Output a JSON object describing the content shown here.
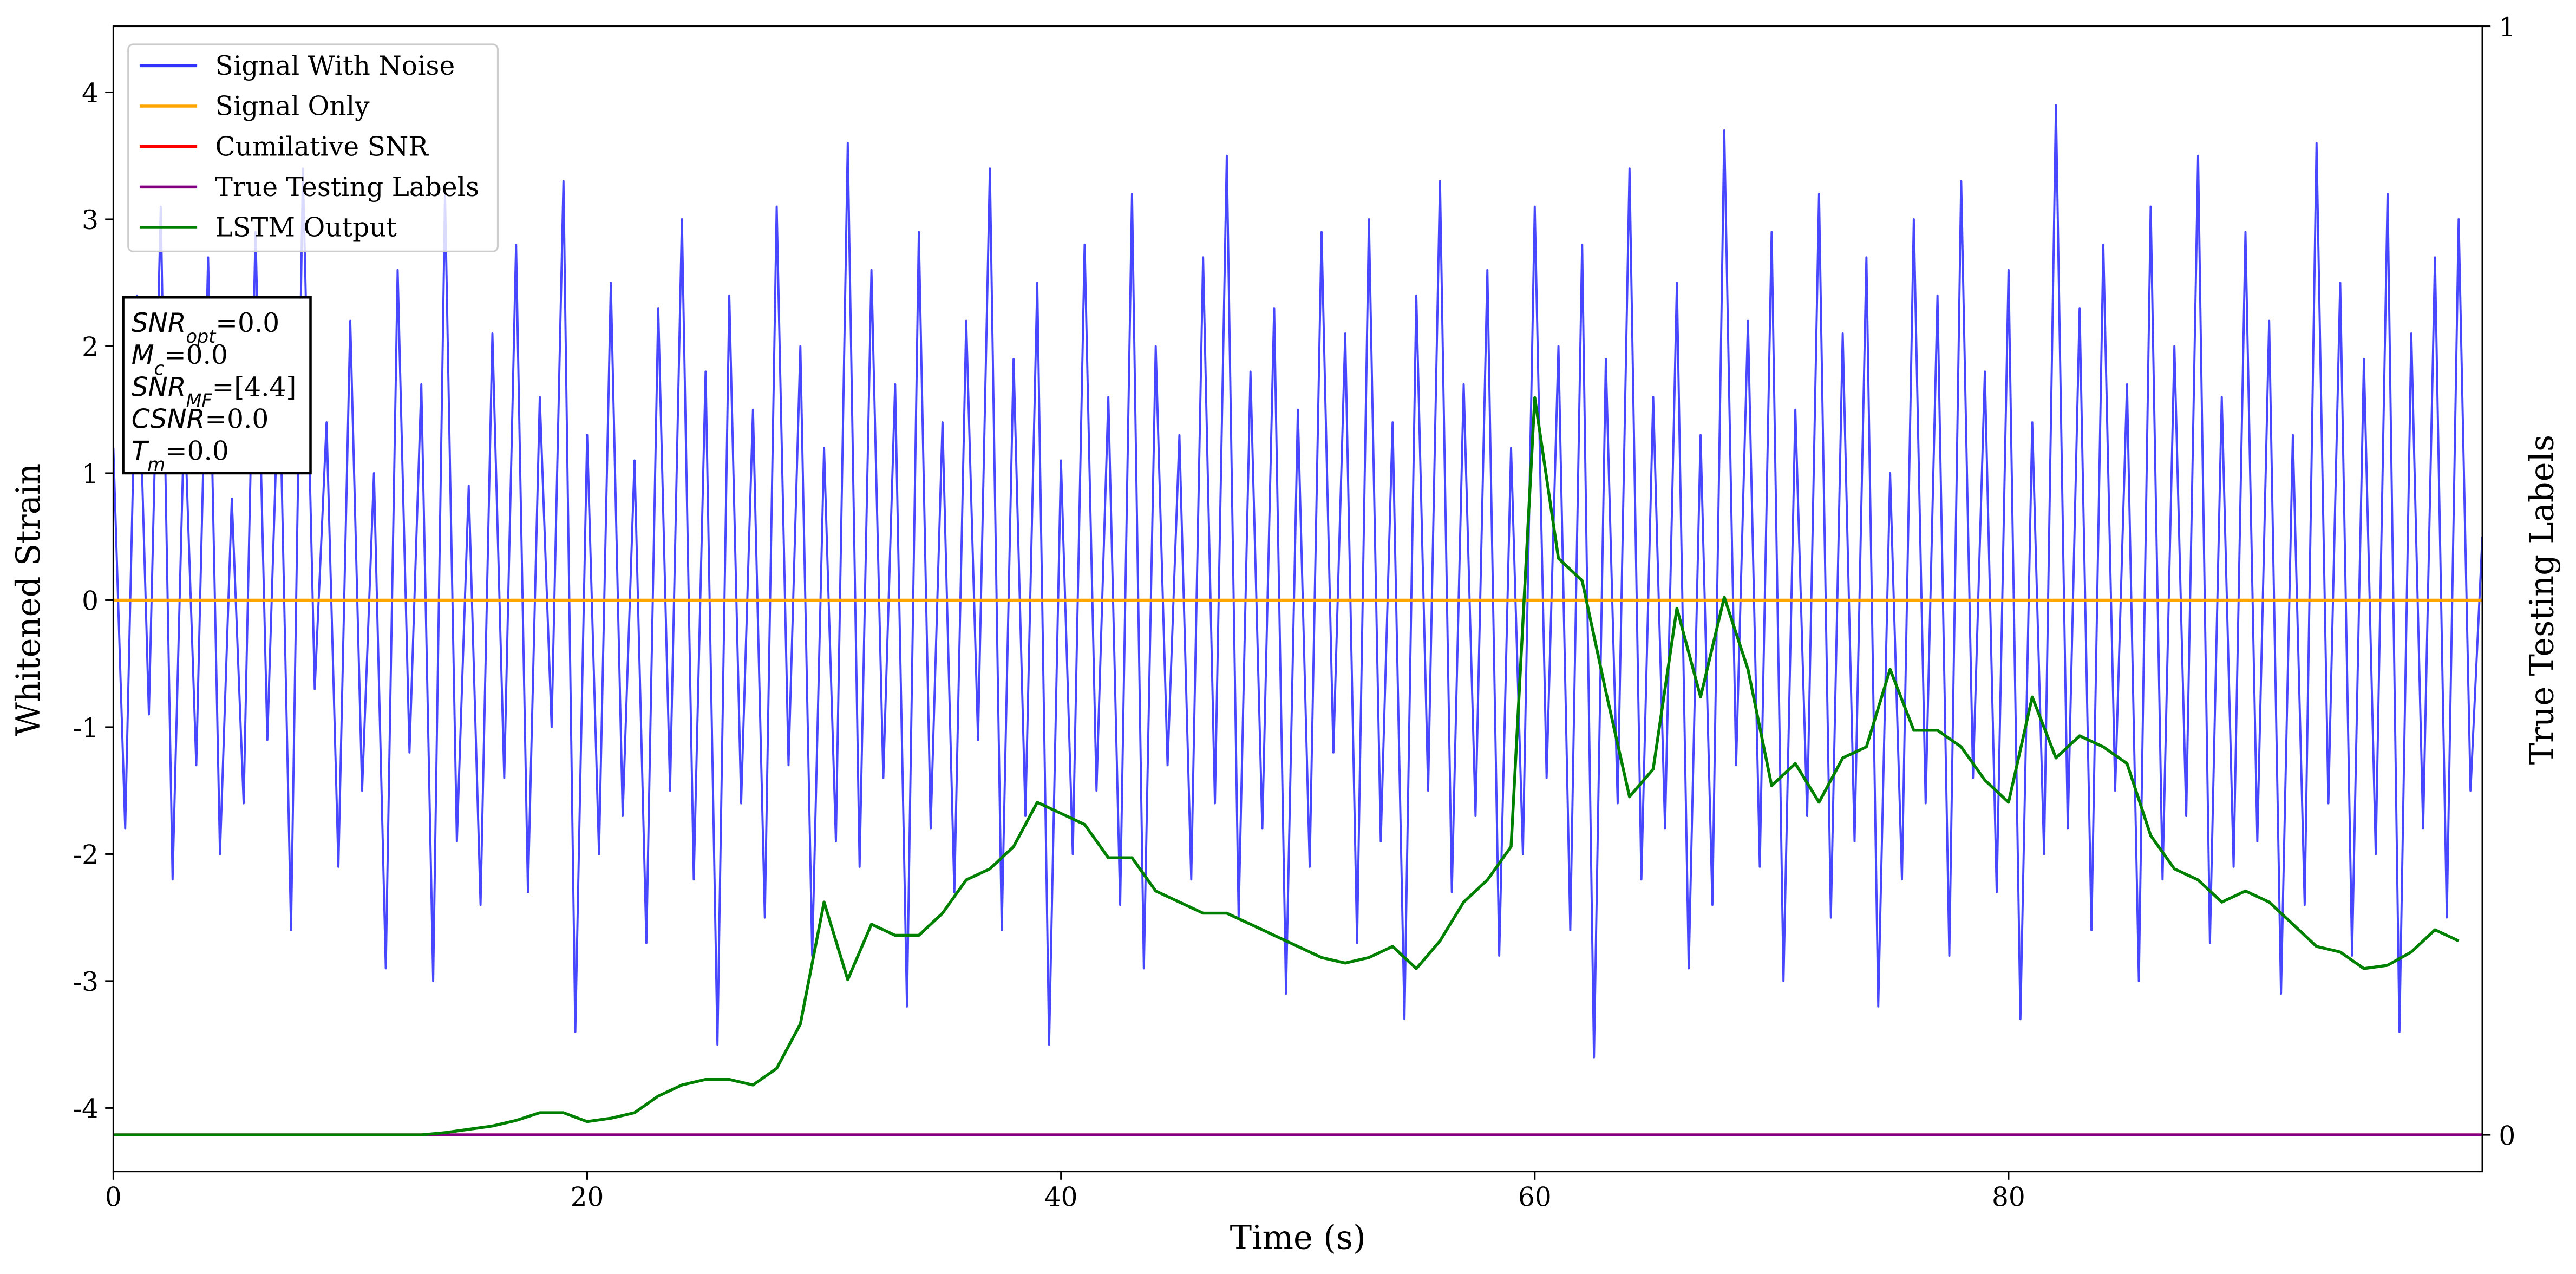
{
  "chart_data": {
    "type": "line",
    "x_label": "Time (s)",
    "y_label": "Whitened Strain",
    "y2_label": "True Testing Labels",
    "xlim": [
      0,
      100
    ],
    "xticks": [
      0,
      20,
      40,
      60,
      80
    ],
    "ylim": [
      -4.5,
      4.52
    ],
    "yticks": [
      -4,
      -3,
      -2,
      -1,
      0,
      1,
      2,
      3,
      4
    ],
    "y2lim": [
      -0.033,
      1.0
    ],
    "y2ticks": [
      0,
      1
    ],
    "legend": "upper left",
    "annotations": [
      {
        "symbol": "SNR",
        "sub": "opt",
        "text": "=0.0"
      },
      {
        "symbol": "M",
        "sub": "c",
        "text": "=0.0"
      },
      {
        "symbol": "SNR",
        "sub": "MF",
        "text": "=[4.4]"
      },
      {
        "symbol": "CSNR",
        "sub": null,
        "text": "=0.0"
      },
      {
        "symbol": "T",
        "sub": "m",
        "text": "=0.0"
      }
    ],
    "series": [
      {
        "name": "Signal With Noise",
        "color": "#3333ff",
        "axis": "y",
        "x": [
          0,
          0.5,
          1,
          1.5,
          2,
          2.5,
          3,
          3.5,
          4,
          4.5,
          5,
          5.5,
          6,
          6.5,
          7,
          7.5,
          8,
          8.5,
          9,
          9.5,
          10,
          10.5,
          11,
          11.5,
          12,
          12.5,
          13,
          13.5,
          14,
          14.5,
          15,
          15.5,
          16,
          16.5,
          17,
          17.5,
          18,
          18.5,
          19,
          19.5,
          20,
          20.5,
          21,
          21.5,
          22,
          22.5,
          23,
          23.5,
          24,
          24.5,
          25,
          25.5,
          26,
          26.5,
          27,
          27.5,
          28,
          28.5,
          29,
          29.5,
          30,
          30.5,
          31,
          31.5,
          32,
          32.5,
          33,
          33.5,
          34,
          34.5,
          35,
          35.5,
          36,
          36.5,
          37,
          37.5,
          38,
          38.5,
          39,
          39.5,
          40,
          40.5,
          41,
          41.5,
          42,
          42.5,
          43,
          43.5,
          44,
          44.5,
          45,
          45.5,
          46,
          46.5,
          47,
          47.5,
          48,
          48.5,
          49,
          49.5,
          50,
          50.5,
          51,
          51.5,
          52,
          52.5,
          53,
          53.5,
          54,
          54.5,
          55,
          55.5,
          56,
          56.5,
          57,
          57.5,
          58,
          58.5,
          59,
          59.5,
          60,
          60.5,
          61,
          61.5,
          62,
          62.5,
          63,
          63.5,
          64,
          64.5,
          65,
          65.5,
          66,
          66.5,
          67,
          67.5,
          68,
          68.5,
          69,
          69.5,
          70,
          70.5,
          71,
          71.5,
          72,
          72.5,
          73,
          73.5,
          74,
          74.5,
          75,
          75.5,
          76,
          76.5,
          77,
          77.5,
          78,
          78.5,
          79,
          79.5,
          80,
          80.5,
          81,
          81.5,
          82,
          82.5,
          83,
          83.5,
          84,
          84.5,
          85,
          85.5,
          86,
          86.5,
          87,
          87.5,
          88,
          88.5,
          89,
          89.5,
          90,
          90.5,
          91,
          91.5,
          92,
          92.5,
          93,
          93.5,
          94,
          94.5,
          95,
          95.5,
          96,
          96.5,
          97,
          97.5,
          98,
          98.5,
          99,
          99.5,
          100
        ],
        "values": [
          1.2,
          -1.8,
          2.4,
          -0.9,
          3.1,
          -2.2,
          1.5,
          -1.3,
          2.7,
          -2.0,
          0.8,
          -1.6,
          2.9,
          -1.1,
          1.9,
          -2.6,
          3.4,
          -0.7,
          1.4,
          -2.1,
          2.2,
          -1.5,
          1.0,
          -2.9,
          2.6,
          -1.2,
          1.7,
          -3.0,
          3.2,
          -1.9,
          0.9,
          -2.4,
          2.1,
          -1.4,
          2.8,
          -2.3,
          1.6,
          -1.0,
          3.3,
          -3.4,
          1.3,
          -2.0,
          2.5,
          -1.7,
          1.1,
          -2.7,
          2.3,
          -1.5,
          3.0,
          -2.2,
          1.8,
          -3.5,
          2.4,
          -1.6,
          1.5,
          -2.5,
          3.1,
          -1.3,
          2.0,
          -2.8,
          1.2,
          -1.9,
          3.6,
          -2.1,
          2.6,
          -1.4,
          1.7,
          -3.2,
          2.9,
          -1.8,
          1.4,
          -2.3,
          2.2,
          -1.1,
          3.4,
          -2.6,
          1.9,
          -1.7,
          2.5,
          -3.5,
          1.1,
          -2.0,
          2.8,
          -1.5,
          1.6,
          -2.4,
          3.2,
          -2.9,
          2.0,
          -1.3,
          1.3,
          -2.2,
          2.7,
          -1.6,
          3.5,
          -2.5,
          1.8,
          -1.8,
          2.3,
          -3.1,
          1.5,
          -2.1,
          2.9,
          -1.2,
          2.1,
          -2.7,
          3.0,
          -1.9,
          1.4,
          -3.3,
          2.4,
          -1.5,
          3.3,
          -2.3,
          1.7,
          -1.7,
          2.6,
          -2.8,
          1.2,
          -2.0,
          3.1,
          -1.4,
          2.0,
          -2.6,
          2.8,
          -3.6,
          1.9,
          -1.6,
          3.4,
          -2.2,
          1.6,
          -1.8,
          2.5,
          -2.9,
          1.3,
          -2.4,
          3.7,
          -1.3,
          2.2,
          -2.1,
          2.9,
          -3.0,
          1.5,
          -1.7,
          3.2,
          -2.5,
          2.1,
          -1.9,
          2.7,
          -3.2,
          1.0,
          -2.2,
          3.0,
          -1.6,
          2.4,
          -2.8,
          3.3,
          -1.4,
          1.8,
          -2.3,
          2.6,
          -3.3,
          1.4,
          -2.0,
          3.9,
          -1.8,
          2.3,
          -2.6,
          2.8,
          -1.5,
          1.7,
          -3.0,
          3.1,
          -2.2,
          2.0,
          -1.7,
          3.5,
          -2.7,
          1.6,
          -2.1,
          2.9,
          -1.9,
          2.2,
          -3.1,
          1.3,
          -2.4,
          3.6,
          -1.6,
          2.5,
          -2.8,
          1.9,
          -2.0,
          3.2,
          -3.4,
          2.1,
          -1.8,
          2.7,
          -2.5,
          3.0,
          -1.5,
          0.5
        ]
      },
      {
        "name": "Signal Only",
        "color": "#ffa500",
        "axis": "y",
        "x": [
          0,
          100
        ],
        "values": [
          0,
          0
        ]
      },
      {
        "name": "Cumilative SNR",
        "color": "#ff0000",
        "axis": "y2",
        "x": [
          0,
          100
        ],
        "values": [
          0,
          0
        ]
      },
      {
        "name": "True Testing Labels",
        "color": "#800080",
        "axis": "y2",
        "x": [
          0,
          100
        ],
        "values": [
          0,
          0
        ]
      },
      {
        "name": "LSTM Output",
        "color": "#008000",
        "axis": "y2",
        "x": [
          0,
          1,
          2,
          3,
          4,
          5,
          6,
          7,
          8,
          9,
          10,
          11,
          12,
          13,
          14,
          15,
          16,
          17,
          18,
          19,
          20,
          21,
          22,
          23,
          24,
          25,
          26,
          27,
          28,
          29,
          30,
          31,
          32,
          33,
          34,
          35,
          36,
          37,
          38,
          39,
          40,
          41,
          42,
          43,
          44,
          45,
          46,
          47,
          48,
          49,
          50,
          51,
          52,
          53,
          54,
          55,
          56,
          57,
          58,
          59,
          60,
          61,
          62,
          63,
          64,
          65,
          66,
          67,
          68,
          69,
          70,
          71,
          72,
          73,
          74,
          75,
          76,
          77,
          78,
          79,
          80,
          81,
          82,
          83,
          84,
          85,
          86,
          87,
          88,
          89,
          90,
          91,
          92,
          93,
          94,
          95,
          96,
          97,
          98,
          99
        ],
        "values": [
          0,
          0,
          0,
          0,
          0,
          0,
          0,
          0,
          0,
          0,
          0,
          0,
          0,
          0,
          0.002,
          0.005,
          0.008,
          0.013,
          0.02,
          0.02,
          0.012,
          0.015,
          0.02,
          0.035,
          0.045,
          0.05,
          0.05,
          0.045,
          0.06,
          0.1,
          0.21,
          0.14,
          0.19,
          0.18,
          0.18,
          0.2,
          0.23,
          0.24,
          0.26,
          0.3,
          0.29,
          0.28,
          0.25,
          0.25,
          0.22,
          0.21,
          0.2,
          0.2,
          0.19,
          0.18,
          0.17,
          0.16,
          0.155,
          0.16,
          0.17,
          0.15,
          0.175,
          0.21,
          0.23,
          0.26,
          0.665,
          0.52,
          0.5,
          0.4,
          0.305,
          0.33,
          0.475,
          0.395,
          0.485,
          0.42,
          0.315,
          0.335,
          0.3,
          0.34,
          0.35,
          0.42,
          0.365,
          0.365,
          0.35,
          0.32,
          0.3,
          0.395,
          0.34,
          0.36,
          0.35,
          0.335,
          0.27,
          0.24,
          0.23,
          0.21,
          0.22,
          0.21,
          0.19,
          0.17,
          0.165,
          0.15,
          0.153,
          0.165,
          0.185,
          0.175
        ]
      }
    ]
  }
}
